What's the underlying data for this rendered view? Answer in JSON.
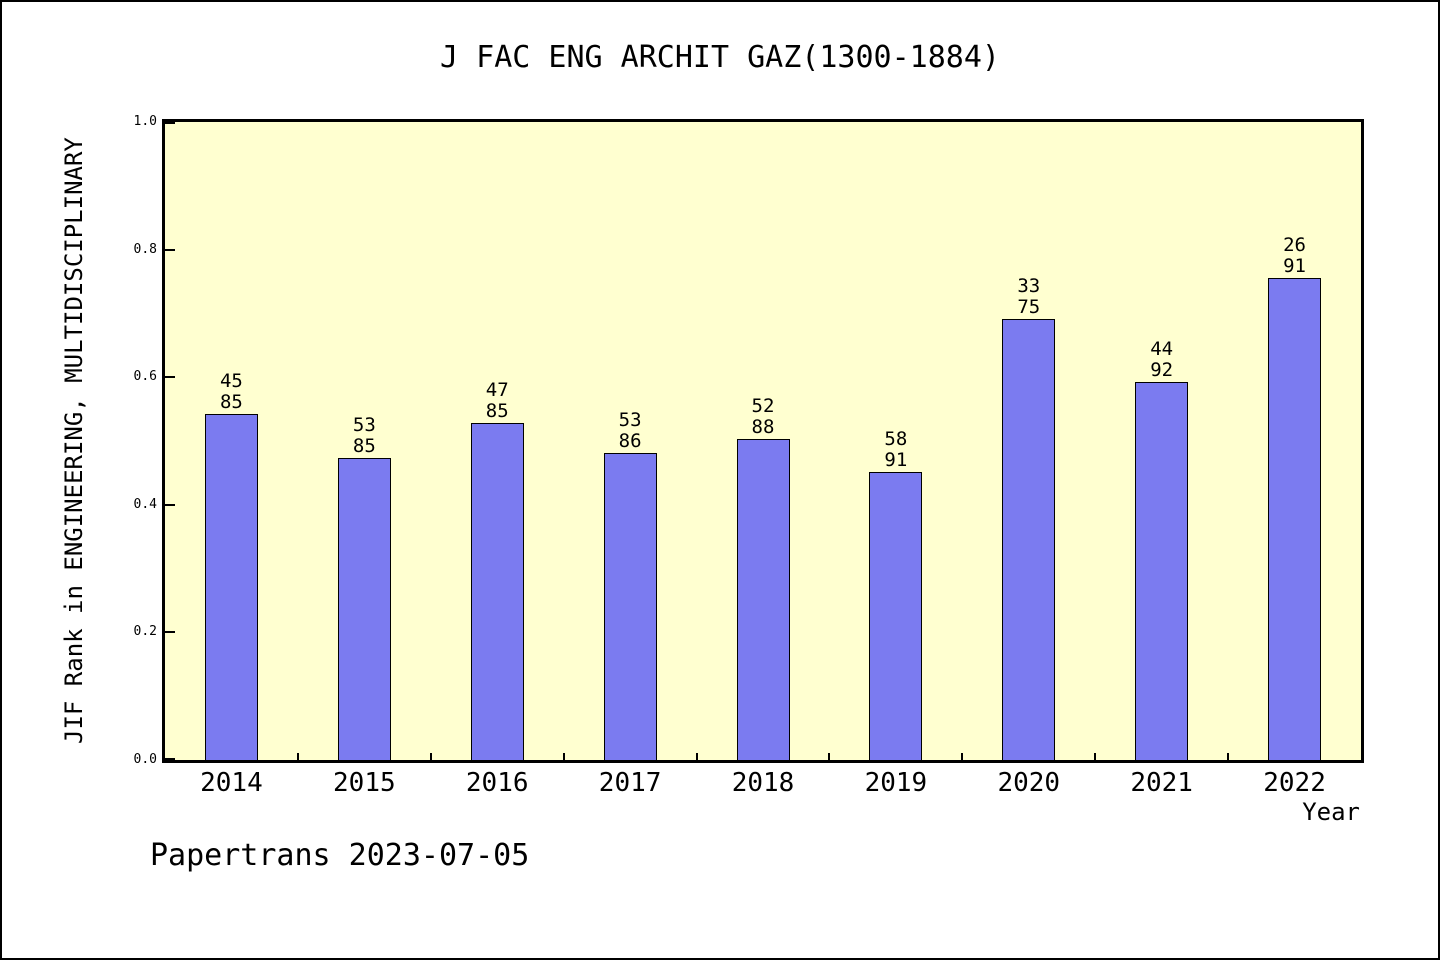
{
  "footer": "Papertrans 2023-07-05",
  "chart_data": {
    "type": "bar",
    "title": "J FAC ENG ARCHIT GAZ(1300-1884)",
    "xlabel": "Year",
    "ylabel": "JIF Rank in ENGINEERING, MULTIDISCIPLINARY",
    "categories": [
      "2014",
      "2015",
      "2016",
      "2017",
      "2018",
      "2019",
      "2020",
      "2021",
      "2022"
    ],
    "values": [
      0.543,
      0.474,
      0.528,
      0.481,
      0.503,
      0.452,
      0.691,
      0.592,
      0.756
    ],
    "bar_labels": [
      {
        "rank": "45",
        "total": "85"
      },
      {
        "rank": "53",
        "total": "85"
      },
      {
        "rank": "47",
        "total": "85"
      },
      {
        "rank": "53",
        "total": "86"
      },
      {
        "rank": "52",
        "total": "88"
      },
      {
        "rank": "58",
        "total": "91"
      },
      {
        "rank": "33",
        "total": "75"
      },
      {
        "rank": "44",
        "total": "92"
      },
      {
        "rank": "26",
        "total": "91"
      }
    ],
    "ylim": [
      0.0,
      1.0
    ],
    "yticks": [
      "0.0",
      "0.2",
      "0.4",
      "0.6",
      "0.8",
      "1.0"
    ],
    "grid": false,
    "legend": null,
    "bar_color": "#7b7bf0",
    "plot_bg_color": "#ffffd0",
    "page_bg_color": "#ffffff",
    "axis_color": "#000000"
  }
}
